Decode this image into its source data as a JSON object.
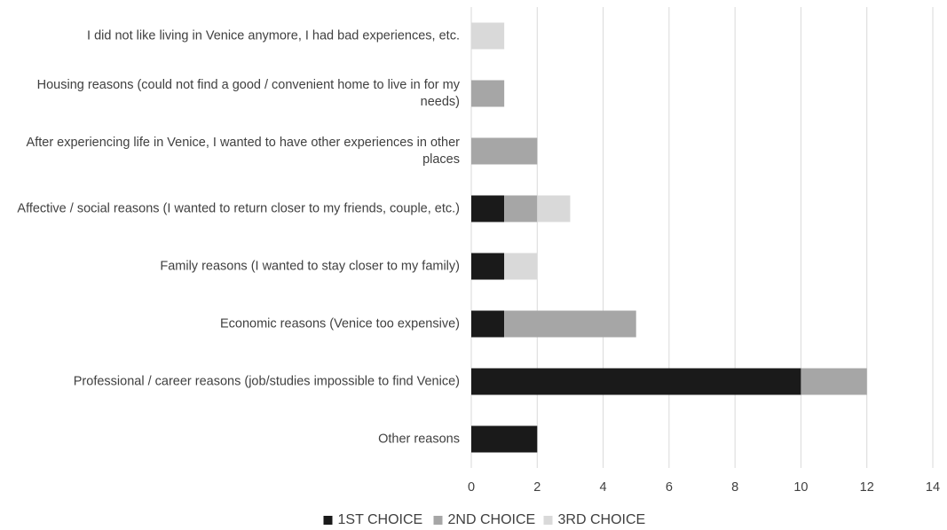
{
  "chart_data": {
    "type": "bar",
    "orientation": "horizontal",
    "stacked": true,
    "categories": [
      "I did not like living in Venice anymore, I had bad experiences, etc.",
      "Housing reasons (could not find a good / convenient home to live in for my needs)",
      "After experiencing life in Venice, I wanted to have other experiences in other places",
      "Affective / social reasons (I wanted to return closer to my friends, couple, etc.)",
      "Family reasons (I wanted to stay closer to my family)",
      "Economic reasons (Venice too expensive)",
      "Professional / career reasons (job/studies impossible to find Venice)",
      "Other reasons"
    ],
    "category_lines": [
      [
        "I did not like living in Venice anymore, I had bad experiences, etc."
      ],
      [
        "Housing reasons (could not find a good / convenient home to live in for my",
        "needs)"
      ],
      [
        "After experiencing life in Venice, I wanted to have other experiences in other",
        "places"
      ],
      [
        "Affective / social reasons (I wanted to return closer to my friends, couple, etc.)"
      ],
      [
        "Family reasons (I wanted to stay closer to my family)"
      ],
      [
        "Economic reasons (Venice too expensive)"
      ],
      [
        "Professional / career reasons (job/studies impossible to find Venice)"
      ],
      [
        "Other reasons"
      ]
    ],
    "series": [
      {
        "name": "1ST CHOICE",
        "color": "#1a1a1a",
        "values": [
          0,
          0,
          0,
          1,
          1,
          1,
          10,
          2
        ]
      },
      {
        "name": "2ND CHOICE",
        "color": "#a6a6a6",
        "values": [
          0,
          1,
          2,
          1,
          0,
          4,
          2,
          0
        ]
      },
      {
        "name": "3RD CHOICE",
        "color": "#d9d9d9",
        "values": [
          1,
          0,
          0,
          1,
          1,
          0,
          0,
          0
        ]
      }
    ],
    "xlim": [
      0,
      14
    ],
    "xticks": [
      "0",
      "2",
      "4",
      "6",
      "8",
      "10",
      "12",
      "14"
    ],
    "xgrid": true,
    "legend_position": "bottom",
    "title": "",
    "xlabel": "",
    "ylabel": ""
  }
}
